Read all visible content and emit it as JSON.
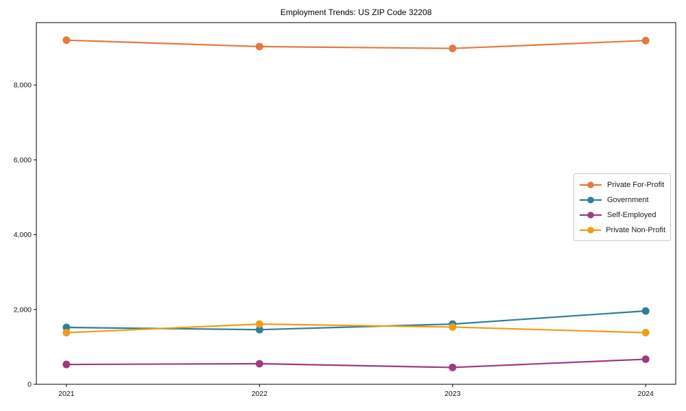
{
  "page": {
    "background": "#ffffff"
  },
  "chart_data": {
    "type": "line",
    "title": "Employment Trends: US ZIP Code 32208",
    "categories": [
      "2021",
      "2022",
      "2023",
      "2024"
    ],
    "series": [
      {
        "name": "Private For-Profit",
        "color": "#e2793e",
        "values": [
          9200,
          9030,
          8980,
          9190
        ]
      },
      {
        "name": "Government",
        "color": "#2e7e9c",
        "values": [
          1520,
          1460,
          1610,
          1960
        ]
      },
      {
        "name": "Self-Employed",
        "color": "#9e3a7e",
        "values": [
          530,
          550,
          450,
          670
        ]
      },
      {
        "name": "Private Non-Profit",
        "color": "#f09d13",
        "values": [
          1380,
          1610,
          1530,
          1380
        ]
      }
    ],
    "xlabel": "",
    "ylabel": "",
    "ylim": [
      0,
      9670
    ],
    "yticks": [
      0,
      2000,
      4000,
      6000,
      8000
    ],
    "ytick_labels": [
      "0",
      "2,000",
      "4,000",
      "6,000",
      "8,000"
    ],
    "grid": false,
    "marker": "circle",
    "legend_position": "middle-right",
    "legend_entries": [
      "Private For-Profit",
      "Government",
      "Self-Employed",
      "Private Non-Profit"
    ]
  },
  "colors": {
    "axis": "#000000",
    "tick_text": "#111111",
    "title_text": "#000000",
    "legend_border": "#c9c9c9",
    "legend_bg": "#ffffff"
  }
}
